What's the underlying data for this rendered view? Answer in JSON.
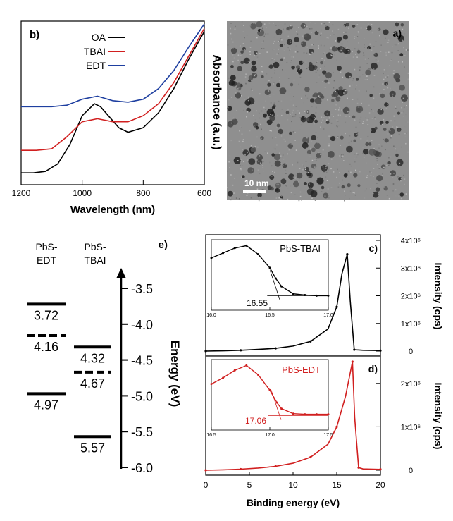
{
  "figure": {
    "note": "mirrored multi-panel figure"
  },
  "panel_a": {
    "label": "a)",
    "scale_bar": "10 nm",
    "colors": {
      "background": "#8f8f8f",
      "particle": "#3a3a3a"
    }
  },
  "chart_data": [
    {
      "id": "b",
      "type": "line",
      "panel_label": "b)",
      "xlabel": "Wavelength (nm)",
      "ylabel": "Absorbance (a.u.)",
      "xlim": [
        600,
        1200
      ],
      "x_reversed": true,
      "x_ticks": [
        "600",
        "800",
        "1000",
        "1200"
      ],
      "legend": [
        "OA",
        "TBAI",
        "EDT"
      ],
      "legend_position": "top-left",
      "series": [
        {
          "name": "OA",
          "color": "#000000",
          "x": [
            600,
            650,
            700,
            750,
            800,
            850,
            880,
            910,
            940,
            960,
            1000,
            1040,
            1080,
            1120,
            1160,
            1200
          ],
          "y": [
            1.0,
            0.82,
            0.62,
            0.46,
            0.36,
            0.33,
            0.36,
            0.43,
            0.5,
            0.52,
            0.44,
            0.25,
            0.12,
            0.07,
            0.06,
            0.06
          ]
        },
        {
          "name": "TBAI",
          "color": "#d11f1f",
          "x": [
            600,
            650,
            700,
            750,
            800,
            850,
            900,
            950,
            1000,
            1050,
            1100,
            1150,
            1200
          ],
          "y": [
            1.02,
            0.84,
            0.66,
            0.52,
            0.44,
            0.4,
            0.4,
            0.42,
            0.4,
            0.3,
            0.22,
            0.21,
            0.21
          ]
        },
        {
          "name": "EDT",
          "color": "#1e3fa0",
          "x": [
            600,
            650,
            700,
            750,
            800,
            850,
            900,
            950,
            1000,
            1050,
            1100,
            1150,
            1200
          ],
          "y": [
            1.05,
            0.9,
            0.74,
            0.62,
            0.55,
            0.53,
            0.54,
            0.57,
            0.55,
            0.51,
            0.5,
            0.5,
            0.5
          ]
        }
      ]
    },
    {
      "id": "c",
      "type": "line",
      "panel_label": "c)",
      "xlabel": "",
      "ylabel": "Intensity (cps)",
      "xlim": [
        0,
        20
      ],
      "x_reversed": true,
      "y_tick_labels": [
        "0",
        "1x10⁶",
        "2x10⁶",
        "3x10⁶",
        "4x10⁶"
      ],
      "y_tick_values": [
        0,
        1000000,
        2000000,
        3000000,
        4000000
      ],
      "series": [
        {
          "name": "PbS-TBAI",
          "color": "#000000",
          "x": [
            0,
            2,
            4,
            6,
            8,
            10,
            12,
            14,
            15,
            15.6,
            16.2,
            16.55,
            17,
            18,
            20
          ],
          "y": [
            0,
            10000,
            30000,
            60000,
            100000,
            180000,
            350000,
            800000,
            1600000,
            2800000,
            3500000,
            1800000,
            50000,
            30000,
            20000
          ]
        }
      ],
      "inset": {
        "label": "PbS-TBAI",
        "xlim": [
          16.0,
          17.0
        ],
        "x_ticks": [
          "16.0",
          "16.5",
          "17.0"
        ],
        "annotation": "16.55",
        "x": [
          16.0,
          16.1,
          16.2,
          16.3,
          16.4,
          16.5,
          16.55,
          16.6,
          16.7,
          16.8,
          16.9,
          17.0
        ],
        "y": [
          0.8,
          0.88,
          0.96,
          1.0,
          0.86,
          0.64,
          0.47,
          0.34,
          0.22,
          0.2,
          0.19,
          0.19
        ]
      }
    },
    {
      "id": "d",
      "type": "line",
      "panel_label": "d)",
      "xlabel": "Binding energy (eV)",
      "ylabel": "Intensity (cps)",
      "xlim": [
        0,
        20
      ],
      "x_reversed": true,
      "x_ticks": [
        "0",
        "5",
        "10",
        "15",
        "20"
      ],
      "y_tick_labels": [
        "0",
        "1x10⁶",
        "2x10⁶"
      ],
      "y_tick_values": [
        0,
        1000000,
        2000000
      ],
      "series": [
        {
          "name": "PbS-EDT",
          "color": "#d11f1f",
          "x": [
            0,
            2,
            4,
            6,
            8,
            10,
            12,
            14,
            15,
            16,
            16.8,
            17.06,
            17.5,
            18,
            20
          ],
          "y": [
            0,
            10000,
            25000,
            50000,
            90000,
            160000,
            300000,
            600000,
            1000000,
            1700000,
            2500000,
            1200000,
            60000,
            30000,
            20000
          ]
        }
      ],
      "inset": {
        "label": "PbS-EDT",
        "xlim": [
          16.5,
          17.5
        ],
        "x_ticks": [
          "16.5",
          "17.0",
          "17.5"
        ],
        "annotation": "17.06",
        "x": [
          16.5,
          16.6,
          16.7,
          16.8,
          16.9,
          17.0,
          17.06,
          17.1,
          17.2,
          17.3,
          17.4,
          17.5
        ],
        "y": [
          0.7,
          0.8,
          0.92,
          1.0,
          0.85,
          0.6,
          0.4,
          0.3,
          0.22,
          0.21,
          0.21,
          0.21
        ]
      }
    },
    {
      "id": "e",
      "type": "energy-level diagram",
      "panel_label": "e)",
      "ylabel": "Energy (eV)",
      "ylim": [
        -6.0,
        -3.3
      ],
      "y_ticks": [
        "-3.5",
        "-4.0",
        "-4.5",
        "-5.0",
        "-5.5",
        "-6.0"
      ],
      "columns": [
        {
          "name": "PbS-TBAI",
          "levels": [
            {
              "label": "4.32",
              "value": -4.32,
              "style": "solid"
            },
            {
              "label": "4.67",
              "value": -4.67,
              "style": "dashed"
            },
            {
              "label": "5.57",
              "value": -5.57,
              "style": "solid"
            }
          ]
        },
        {
          "name": "PbS-EDT",
          "levels": [
            {
              "label": "3.72",
              "value": -3.72,
              "style": "solid"
            },
            {
              "label": "4.16",
              "value": -4.16,
              "style": "dashed"
            },
            {
              "label": "4.97",
              "value": -4.97,
              "style": "solid"
            }
          ]
        }
      ]
    }
  ]
}
